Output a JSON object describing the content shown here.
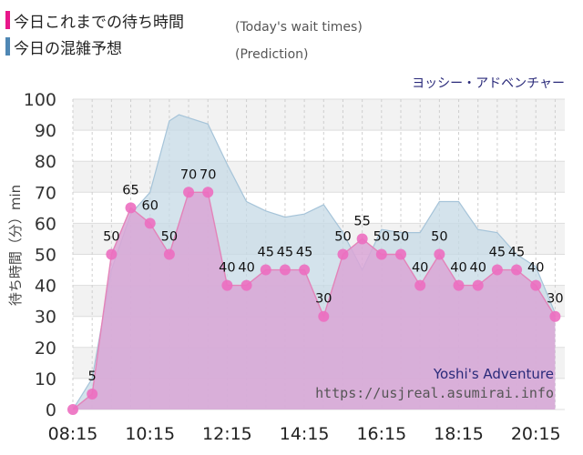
{
  "legend": {
    "actual_label": "今日これまでの待ち時間",
    "actual_note": "(Today's wait times)",
    "prediction_label": "今日の混雑予想",
    "prediction_note": "(Prediction)"
  },
  "colors": {
    "actual_swatch": "#e8178a",
    "prediction_swatch": "#4f87b4",
    "actual_fill": "#d9a6d6",
    "actual_line": "#e383b9",
    "actual_point": "#ec6ec0",
    "prediction_fill": "#c5d9e6",
    "prediction_line": "#a6c4d9",
    "plot_bg": "#f2f2f2"
  },
  "chart_data": {
    "type": "area",
    "title": "ヨッシー・アドベンチャー",
    "ylabel": "待ち時間（分）min",
    "ylim": [
      0,
      100
    ],
    "yticks": [
      0,
      10,
      20,
      30,
      40,
      50,
      60,
      70,
      80,
      90,
      100
    ],
    "xlim": [
      "08:15",
      "21:00"
    ],
    "xticks": [
      "08:15",
      "10:15",
      "12:15",
      "14:15",
      "16:15",
      "18:15",
      "20:15"
    ],
    "grid": true,
    "watermark": [
      "Yoshi's Adventure",
      "https://usjreal.asumirai.info"
    ],
    "series": [
      {
        "name": "今日これまでの待ち時間",
        "x": [
          "08:15",
          "08:45",
          "09:15",
          "09:45",
          "10:15",
          "10:45",
          "11:15",
          "11:45",
          "12:15",
          "12:45",
          "13:15",
          "13:45",
          "14:15",
          "14:45",
          "15:15",
          "15:45",
          "16:15",
          "16:45",
          "17:15",
          "17:45",
          "18:15",
          "18:45",
          "19:15",
          "19:45",
          "20:15",
          "20:45"
        ],
        "values": [
          0,
          5,
          50,
          65,
          60,
          50,
          70,
          70,
          40,
          40,
          45,
          45,
          45,
          30,
          50,
          55,
          50,
          50,
          40,
          50,
          40,
          40,
          45,
          45,
          40,
          30
        ]
      },
      {
        "name": "今日の混雑予想",
        "x": [
          "08:15",
          "08:45",
          "09:15",
          "09:45",
          "10:15",
          "10:45",
          "11:00",
          "11:15",
          "11:45",
          "12:15",
          "12:45",
          "13:15",
          "13:45",
          "14:15",
          "14:45",
          "15:15",
          "15:45",
          "16:15",
          "16:45",
          "17:15",
          "17:45",
          "18:15",
          "18:45",
          "19:15",
          "19:45",
          "20:15",
          "20:45"
        ],
        "values": [
          0,
          10,
          45,
          63,
          70,
          93,
          95,
          94,
          92,
          79,
          67,
          64,
          62,
          63,
          66,
          57,
          45,
          58,
          57,
          57,
          67,
          67,
          58,
          57,
          50,
          46,
          31
        ]
      }
    ]
  }
}
